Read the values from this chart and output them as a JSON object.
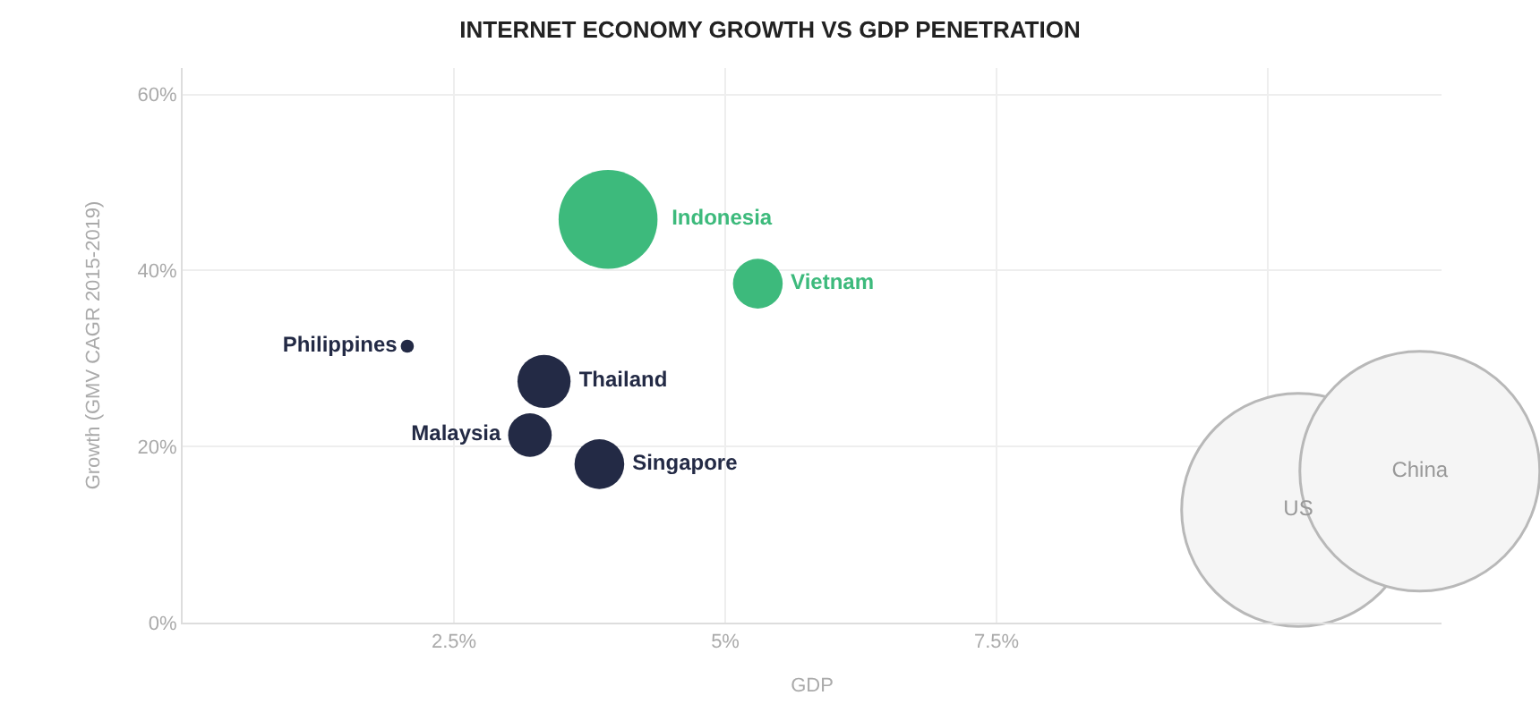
{
  "chart_data": {
    "type": "bubble",
    "title": "INTERNET ECONOMY GROWTH VS GDP PENETRATION",
    "xlabel": "GDP",
    "ylabel": "Growth (GMV CAGR 2015-2019)",
    "xlim": [
      0,
      11.6
    ],
    "xticks": [
      {
        "value": 2.5,
        "label": "2.5%"
      },
      {
        "value": 5,
        "label": "5%"
      },
      {
        "value": 7.5,
        "label": "7.5%"
      },
      {
        "value": 10,
        "label": null
      }
    ],
    "ylim": [
      0,
      63
    ],
    "yticks": [
      {
        "value": 0,
        "label": "0%"
      },
      {
        "value": 20,
        "label": "20%"
      },
      {
        "value": 40,
        "label": "40%"
      },
      {
        "value": 60,
        "label": "60%"
      }
    ],
    "grid": true,
    "series": [
      {
        "color": "#3dba7c",
        "x": [
          3.92,
          5.3
        ],
        "values": [
          45.8,
          38.5
        ],
        "sizes": [
          0.17,
          0.043
        ],
        "value_labels": [
          "Indonesia",
          "Vietnam"
        ]
      },
      {
        "color": "#232a45",
        "x": [
          2.07,
          3.33,
          3.2,
          3.84
        ],
        "values": [
          31.4,
          27.4,
          21.3,
          18.0
        ],
        "sizes": [
          0.003,
          0.049,
          0.033,
          0.043
        ],
        "value_labels": [
          "Philippines",
          "Thailand",
          "Malaysia",
          "Singapore"
        ]
      },
      {
        "color": "#f5f5f5",
        "x": [
          10.28,
          11.4
        ],
        "values": [
          12.8,
          17.2
        ],
        "sizes": [
          0.945,
          1
        ],
        "value_labels": [
          "US",
          "China"
        ]
      }
    ]
  }
}
